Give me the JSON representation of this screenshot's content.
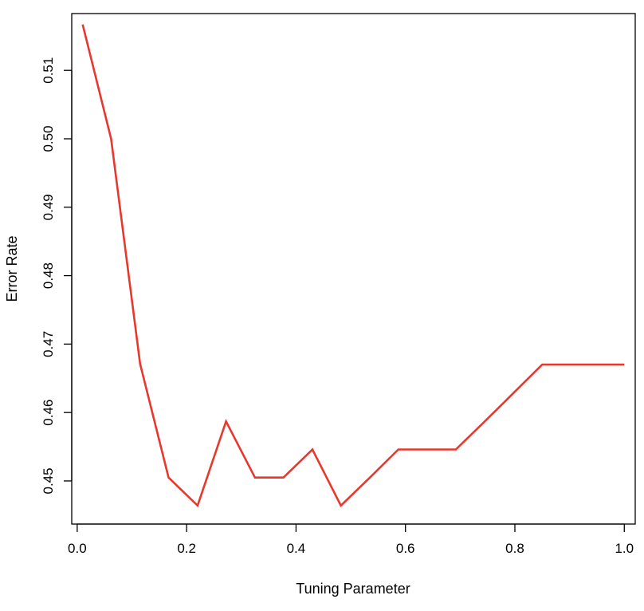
{
  "chart_data": {
    "type": "line",
    "title": "",
    "xlabel": "Tuning Parameter",
    "ylabel": "Error Rate",
    "xlim": [
      -0.01,
      1.02
    ],
    "ylim": [
      0.4437,
      0.5183
    ],
    "x_ticks": [
      "0.0",
      "0.2",
      "0.4",
      "0.6",
      "0.8",
      "1.0"
    ],
    "y_ticks": [
      "0.45",
      "0.46",
      "0.47",
      "0.48",
      "0.49",
      "0.50",
      "0.51"
    ],
    "grid": false,
    "legend": "none",
    "series": [
      {
        "color": "#e8382d",
        "x": [
          0.01,
          0.062,
          0.115,
          0.167,
          0.22,
          0.272,
          0.325,
          0.377,
          0.43,
          0.482,
          0.535,
          0.587,
          0.64,
          0.692,
          0.745,
          0.797,
          0.85,
          0.902,
          0.955,
          1.0
        ],
        "y": [
          0.5167,
          0.5,
          0.4671,
          0.4505,
          0.4464,
          0.4587,
          0.4505,
          0.4505,
          0.4546,
          0.4464,
          0.4505,
          0.4546,
          0.4546,
          0.4546,
          0.4587,
          0.4628,
          0.467,
          0.467,
          0.467,
          0.467
        ]
      }
    ]
  }
}
